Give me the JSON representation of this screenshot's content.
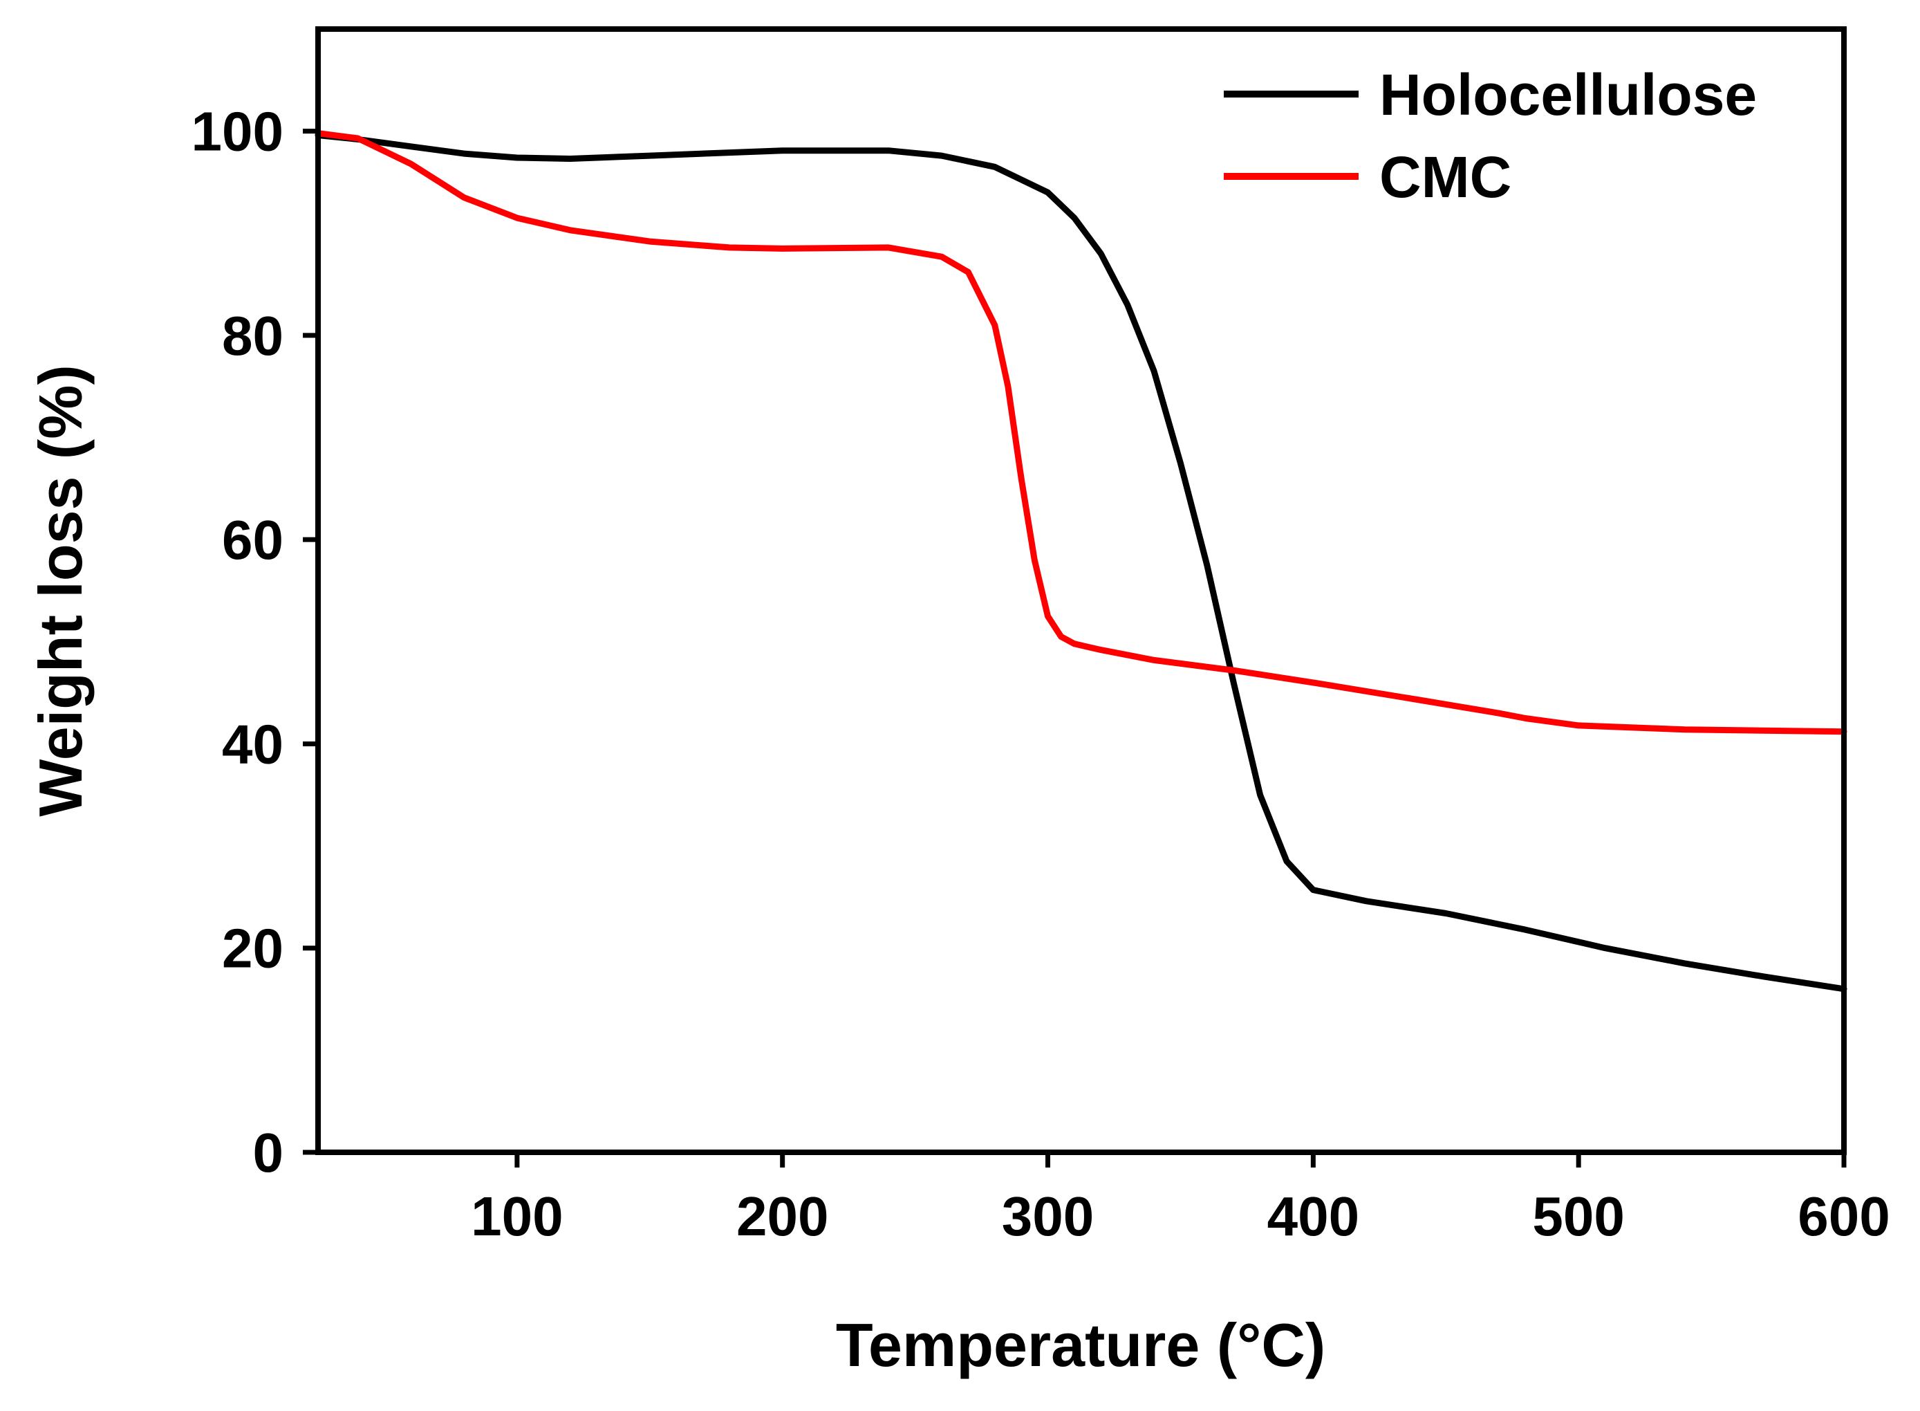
{
  "chart_data": {
    "type": "line",
    "title": "",
    "xlabel": "Temperature (°C)",
    "ylabel": "Weight loss (%)",
    "xlim": [
      25,
      600
    ],
    "ylim": [
      0,
      110
    ],
    "xticks": [
      100,
      200,
      300,
      400,
      500,
      600
    ],
    "xtick_labels": [
      "100",
      "200",
      "300",
      "400",
      "500",
      "600"
    ],
    "yticks": [
      0,
      20,
      40,
      60,
      80,
      100
    ],
    "ytick_labels": [
      "0",
      "20",
      "40",
      "60",
      "80",
      "100"
    ],
    "grid": false,
    "legend_position": "top-right",
    "series": [
      {
        "name": "Holocellulose",
        "color": "#000000",
        "x": [
          25,
          40,
          60,
          80,
          100,
          120,
          150,
          200,
          240,
          260,
          280,
          300,
          310,
          320,
          330,
          340,
          350,
          360,
          370,
          380,
          390,
          400,
          420,
          450,
          480,
          510,
          540,
          570,
          600
        ],
        "y": [
          99.6,
          99.2,
          98.5,
          97.8,
          97.4,
          97.3,
          97.6,
          98.1,
          98.1,
          97.6,
          96.5,
          94,
          91.5,
          88,
          83,
          76.5,
          67.5,
          57.5,
          46,
          35,
          28.5,
          25.7,
          24.6,
          23.4,
          21.8,
          20.0,
          18.5,
          17.2,
          16.0
        ]
      },
      {
        "name": "CMC",
        "color": "#ff0000",
        "x": [
          25,
          40,
          60,
          80,
          100,
          120,
          150,
          180,
          200,
          240,
          260,
          270,
          280,
          285,
          290,
          295,
          300,
          305,
          310,
          315,
          320,
          340,
          370,
          400,
          440,
          470,
          480,
          500,
          540,
          600
        ],
        "y": [
          99.8,
          99.3,
          96.8,
          93.5,
          91.5,
          90.3,
          89.2,
          88.6,
          88.5,
          88.6,
          87.7,
          86.2,
          81,
          75,
          66,
          58,
          52.5,
          50.5,
          49.8,
          49.5,
          49.2,
          48.2,
          47.2,
          46,
          44.3,
          43.0,
          42.5,
          41.8,
          41.4,
          41.2
        ]
      }
    ]
  }
}
